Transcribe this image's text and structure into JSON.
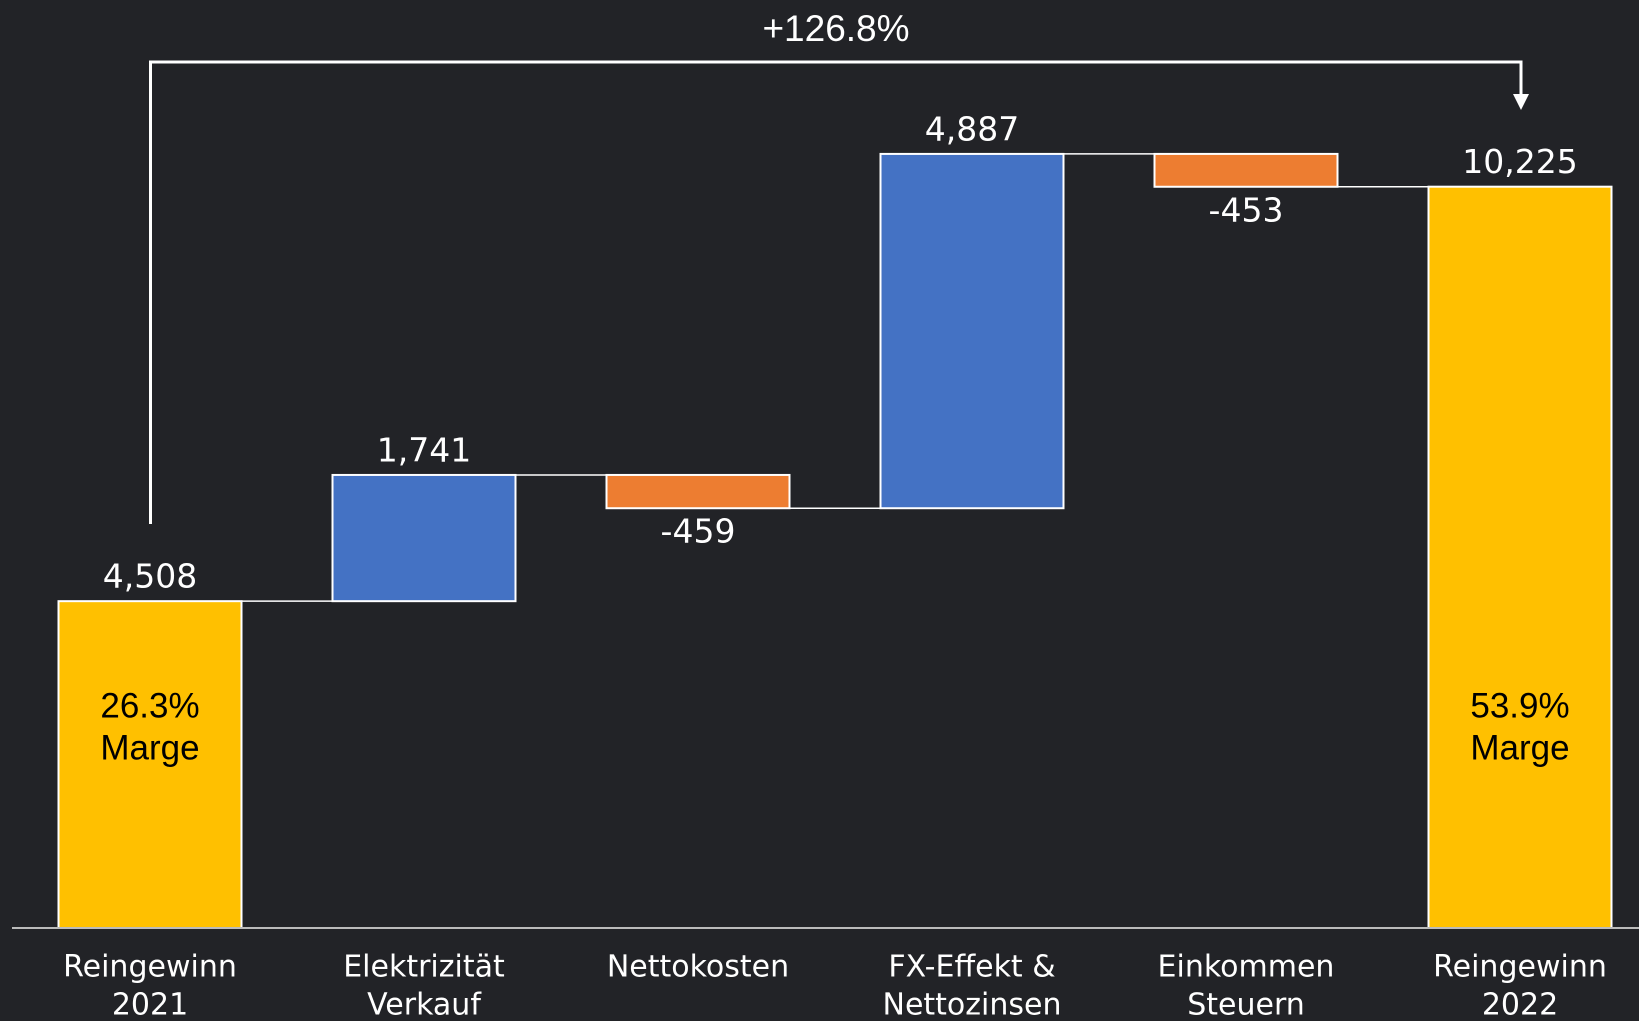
{
  "chart_data": {
    "type": "waterfall",
    "annotation": "+126.8%",
    "categories": [
      [
        "Reingewinn",
        "2021"
      ],
      [
        "Elektrizität",
        "Verkauf"
      ],
      [
        "Nettokosten"
      ],
      [
        "FX-Effekt &",
        "Nettozinsen"
      ],
      [
        "Einkommen",
        "Steuern"
      ],
      [
        "Reingewinn",
        "2022"
      ]
    ],
    "values": [
      4508,
      1741,
      -459,
      4887,
      -453,
      10225
    ],
    "value_labels": [
      "4,508",
      "1,741",
      "-459",
      "4,887",
      "-453",
      "10,225"
    ],
    "bar_notes": [
      [
        "26.3%",
        "Marge"
      ],
      null,
      null,
      null,
      null,
      [
        "53.9%",
        "Marge"
      ]
    ],
    "colors": {
      "total": "#FFC000",
      "increase": "#4472C4",
      "decrease": "#ED7D31"
    },
    "ylim": [
      0,
      12800
    ]
  }
}
